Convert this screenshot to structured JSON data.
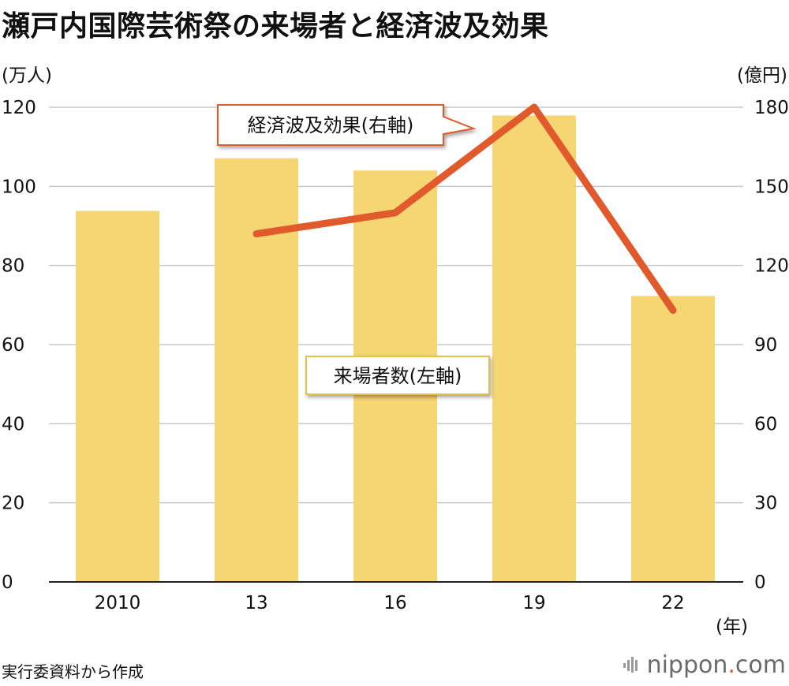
{
  "title": "瀬戸内国際芸術祭の来場者と経済波及効果",
  "source": "実行委資料から作成",
  "brand": {
    "prefix": "nippon",
    "dot": ".",
    "suffix": "com"
  },
  "colors": {
    "bar": "#f6d573",
    "line": "#e05a2b",
    "grid": "#c8c8c8",
    "axis": "#222222"
  },
  "chart_data": {
    "type": "bar",
    "categories": [
      "2010",
      "13",
      "16",
      "19",
      "22"
    ],
    "xlabel": "(年)",
    "grid": true,
    "series": [
      {
        "name": "来場者数(左軸)",
        "type": "bar",
        "axis": "left",
        "values": [
          93.8,
          107.1,
          104.0,
          117.9,
          72.3
        ]
      },
      {
        "name": "経済波及効果(右軸)",
        "type": "line",
        "axis": "right",
        "values": [
          null,
          132,
          140,
          180,
          103
        ]
      }
    ],
    "left_axis": {
      "label": "(万人)",
      "ylim": [
        0,
        120
      ],
      "ticks": [
        0,
        20,
        40,
        60,
        80,
        100,
        120
      ]
    },
    "right_axis": {
      "label": "(億円)",
      "ylim": [
        0,
        180
      ],
      "ticks": [
        0,
        30,
        60,
        90,
        120,
        150,
        180
      ]
    }
  }
}
